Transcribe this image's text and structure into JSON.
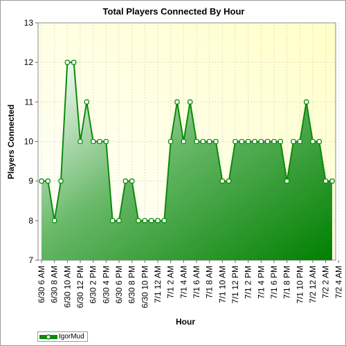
{
  "chart_data": {
    "type": "area",
    "title": "Total Players Connected By Hour",
    "xlabel": "Hour",
    "ylabel": "Players Connected",
    "ylim": [
      7,
      13
    ],
    "yticks": [
      "7",
      "8",
      "9",
      "10",
      "11",
      "12",
      "13"
    ],
    "x_tick_labels": [
      "6/30 6 AM",
      "6/30 8 AM",
      "6/30 10 AM",
      "6/30 12 PM",
      "6/30 2 PM",
      "6/30 4 PM",
      "6/30 6 PM",
      "6/30 8 PM",
      "6/30 10 PM",
      "7/1 12 AM",
      "7/1 2 AM",
      "7/1 4 AM",
      "7/1 6 AM",
      "7/1 8 AM",
      "7/1 10 AM",
      "7/1 12 PM",
      "7/1 2 PM",
      "7/1 4 PM",
      "7/1 6 PM",
      "7/1 8 PM",
      "7/1 10 PM",
      "7/2 12 AM",
      "7/2 2 AM",
      "7/2 4 AM"
    ],
    "x_start": "6/30 6 AM",
    "x_interval": "1 hour",
    "grid": true,
    "legend_position": "bottom-left",
    "series": [
      {
        "name": "IgorMud",
        "color": "#0a8a0a",
        "values": [
          9,
          9,
          8,
          9,
          12,
          12,
          10,
          11,
          10,
          10,
          10,
          8,
          8,
          9,
          9,
          8,
          8,
          8,
          8,
          8,
          10,
          11,
          10,
          11,
          10,
          10,
          10,
          10,
          9,
          9,
          10,
          10,
          10,
          10,
          10,
          10,
          10,
          10,
          9,
          10,
          10,
          11,
          10,
          10,
          9,
          9
        ]
      }
    ]
  }
}
